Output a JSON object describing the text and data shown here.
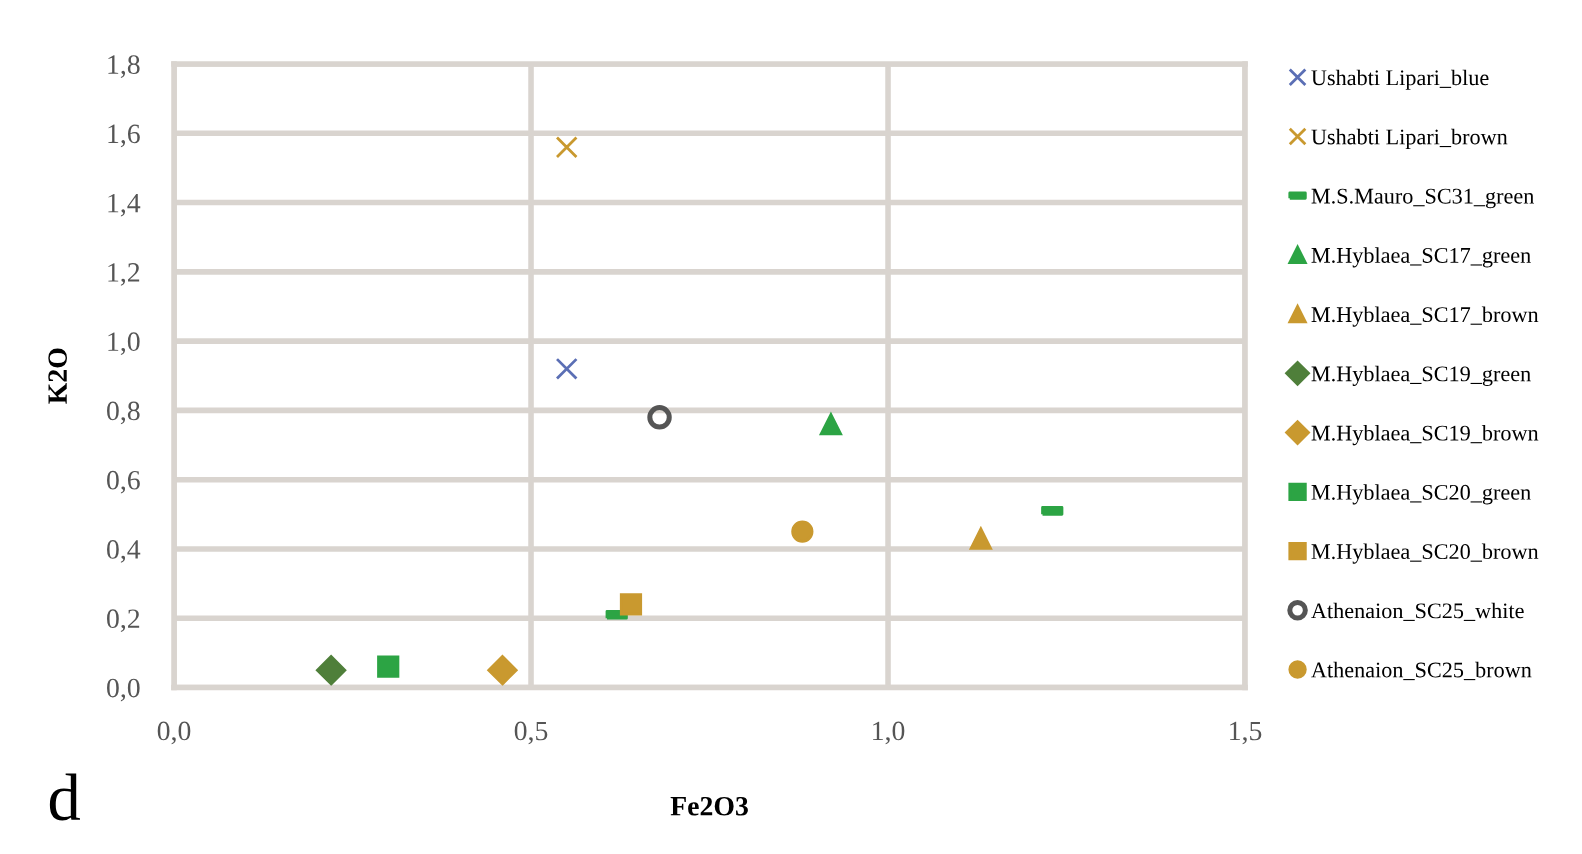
{
  "chart_data": {
    "type": "scatter",
    "xlabel": "Fe2O3",
    "ylabel": "K2O",
    "xlim": [
      0,
      1.5
    ],
    "xticks": [
      {
        "value": 0,
        "label": "0,0"
      },
      {
        "value": 0.5,
        "label": "0,5"
      },
      {
        "value": 1.0,
        "label": "1,0"
      },
      {
        "value": 1.5,
        "label": "1,5"
      }
    ],
    "ylim": [
      0,
      1.8
    ],
    "yticks": [
      {
        "value": 0,
        "label": "0,0"
      },
      {
        "value": 0.2,
        "label": "0,2"
      },
      {
        "value": 0.4,
        "label": "0,4"
      },
      {
        "value": 0.6,
        "label": "0,6"
      },
      {
        "value": 0.8,
        "label": "0,8"
      },
      {
        "value": 1.0,
        "label": "1,0"
      },
      {
        "value": 1.2,
        "label": "1,2"
      },
      {
        "value": 1.4,
        "label": "1,4"
      },
      {
        "value": 1.6,
        "label": "1,6"
      },
      {
        "value": 1.8,
        "label": "1,8"
      }
    ],
    "grid": true,
    "legend": "right",
    "annotations": [
      "d"
    ],
    "series": [
      {
        "name": "Ushabti Lipari_blue",
        "color": "#5b6fb5",
        "marker": "cross",
        "x": [
          0.55
        ],
        "values": [
          0.92
        ]
      },
      {
        "name": "Ushabti Lipari_brown",
        "color": "#c9992f",
        "marker": "cross",
        "x": [
          0.55
        ],
        "values": [
          1.56
        ]
      },
      {
        "name": "M.S.Mauro_SC31_green",
        "color": "#2ca444",
        "x": [
          0.62,
          1.23
        ],
        "values": [
          0.21,
          0.51
        ]
      },
      {
        "name": "M.Hyblaea_SC17_green",
        "color": "#2ca444",
        "marker": "triangle",
        "x": [
          0.92
        ],
        "values": [
          0.76
        ]
      },
      {
        "name": "M.Hyblaea_SC17_brown",
        "color": "#c9992f",
        "marker": "triangle",
        "x": [
          1.13
        ],
        "values": [
          0.43
        ]
      },
      {
        "name": "M.Hyblaea_SC19_green",
        "color": "#4f7f3a",
        "marker": "diamond",
        "x": [
          0.22
        ],
        "values": [
          0.05
        ]
      },
      {
        "name": "M.Hyblaea_SC19_brown",
        "color": "#c9992f",
        "marker": "diamond",
        "x": [
          0.46
        ],
        "values": [
          0.05
        ]
      },
      {
        "name": "M.Hyblaea_SC20_green",
        "color": "#2ca444",
        "marker": "square",
        "x": [
          0.3
        ],
        "values": [
          0.06
        ]
      },
      {
        "name": "M.Hyblaea_SC20_brown",
        "color": "#c9992f",
        "marker": "square",
        "x": [
          0.64
        ],
        "values": [
          0.24
        ]
      },
      {
        "name": "Athenaion_SC25_white",
        "color": "#555555",
        "marker": "open circle",
        "x": [
          0.68
        ],
        "values": [
          0.78
        ]
      },
      {
        "name": "Athenaion_SC25_brown",
        "color": "#c9992f",
        "marker": "circle",
        "x": [
          0.88
        ],
        "values": [
          0.45
        ]
      }
    ]
  }
}
